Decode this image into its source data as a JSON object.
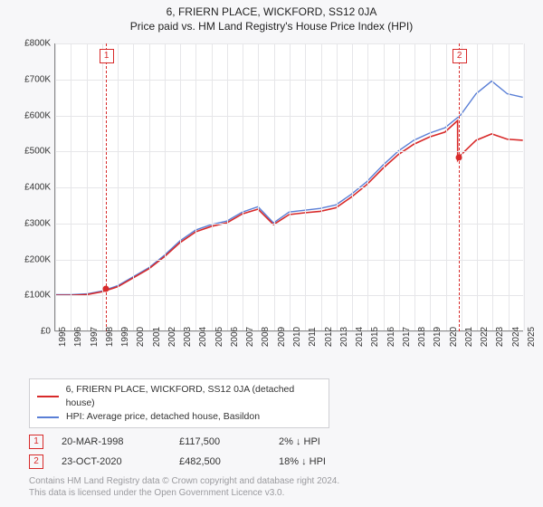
{
  "title_line1": "6, FRIERN PLACE, WICKFORD, SS12 0JA",
  "title_line2": "Price paid vs. HM Land Registry's House Price Index (HPI)",
  "chart": {
    "type": "line",
    "background_color": "#ffffff",
    "grid_color": "#e6e6e9",
    "axis_color": "#888888",
    "label_color": "#333333",
    "label_fontsize": 10,
    "ylim": [
      0,
      800000
    ],
    "ytick_step": 100000,
    "y_ticks": [
      "£0",
      "£100K",
      "£200K",
      "£300K",
      "£400K",
      "£500K",
      "£600K",
      "£700K",
      "£800K"
    ],
    "xlim": [
      1995,
      2025
    ],
    "x_ticks": [
      1995,
      1996,
      1997,
      1998,
      1999,
      2000,
      2001,
      2002,
      2003,
      2004,
      2005,
      2006,
      2007,
      2008,
      2009,
      2010,
      2011,
      2012,
      2013,
      2014,
      2015,
      2016,
      2017,
      2018,
      2019,
      2020,
      2021,
      2022,
      2023,
      2024,
      2025
    ],
    "series": [
      {
        "name": "HPI: Average price, detached house, Basildon",
        "color": "#5a7fd6",
        "width": 1.4,
        "points": [
          [
            1995,
            100000
          ],
          [
            1996,
            100000
          ],
          [
            1997,
            102000
          ],
          [
            1998,
            110000
          ],
          [
            1999,
            125000
          ],
          [
            2000,
            150000
          ],
          [
            2001,
            175000
          ],
          [
            2002,
            210000
          ],
          [
            2003,
            250000
          ],
          [
            2004,
            280000
          ],
          [
            2005,
            295000
          ],
          [
            2006,
            305000
          ],
          [
            2007,
            330000
          ],
          [
            2008,
            345000
          ],
          [
            2009,
            300000
          ],
          [
            2010,
            330000
          ],
          [
            2011,
            335000
          ],
          [
            2012,
            340000
          ],
          [
            2013,
            350000
          ],
          [
            2014,
            380000
          ],
          [
            2015,
            415000
          ],
          [
            2016,
            460000
          ],
          [
            2017,
            500000
          ],
          [
            2018,
            530000
          ],
          [
            2019,
            550000
          ],
          [
            2020,
            565000
          ],
          [
            2021,
            600000
          ],
          [
            2022,
            660000
          ],
          [
            2023,
            695000
          ],
          [
            2024,
            660000
          ],
          [
            2025,
            650000
          ]
        ]
      },
      {
        "name": "6, FRIERN PLACE, WICKFORD, SS12 0JA (detached house)",
        "color": "#d82a2a",
        "width": 1.6,
        "points": [
          [
            1995,
            98000
          ],
          [
            1996,
            98000
          ],
          [
            1997,
            100000
          ],
          [
            1998,
            108000
          ],
          [
            1999,
            122000
          ],
          [
            2000,
            147000
          ],
          [
            2001,
            172000
          ],
          [
            2002,
            206000
          ],
          [
            2003,
            245000
          ],
          [
            2004,
            275000
          ],
          [
            2005,
            290000
          ],
          [
            2006,
            300000
          ],
          [
            2007,
            325000
          ],
          [
            2008,
            338000
          ],
          [
            2009,
            295000
          ],
          [
            2010,
            323000
          ],
          [
            2011,
            328000
          ],
          [
            2012,
            332000
          ],
          [
            2013,
            342000
          ],
          [
            2014,
            372000
          ],
          [
            2015,
            407000
          ],
          [
            2016,
            451000
          ],
          [
            2017,
            490000
          ],
          [
            2018,
            519000
          ],
          [
            2019,
            539000
          ],
          [
            2020,
            553000
          ],
          [
            2020.81,
            585000
          ],
          [
            2020.82,
            475000
          ],
          [
            2021,
            488000
          ],
          [
            2022,
            530000
          ],
          [
            2023,
            548000
          ],
          [
            2024,
            533000
          ],
          [
            2025,
            530000
          ]
        ]
      }
    ],
    "markers": [
      {
        "num": "1",
        "x": 1998.22,
        "price": 117500,
        "box_color": "#d82a2a"
      },
      {
        "num": "2",
        "x": 2020.81,
        "price": 482500,
        "box_color": "#d82a2a"
      }
    ]
  },
  "legend": {
    "rows": [
      {
        "color": "#d82a2a",
        "label": "6, FRIERN PLACE, WICKFORD, SS12 0JA (detached house)"
      },
      {
        "color": "#5a7fd6",
        "label": "HPI: Average price, detached house, Basildon"
      }
    ]
  },
  "sales": [
    {
      "num": "1",
      "date": "20-MAR-1998",
      "price": "£117,500",
      "pct": "2% ↓ HPI"
    },
    {
      "num": "2",
      "date": "23-OCT-2020",
      "price": "£482,500",
      "pct": "18% ↓ HPI"
    }
  ],
  "footer_line1": "Contains HM Land Registry data © Crown copyright and database right 2024.",
  "footer_line2": "This data is licensed under the Open Government Licence v3.0."
}
